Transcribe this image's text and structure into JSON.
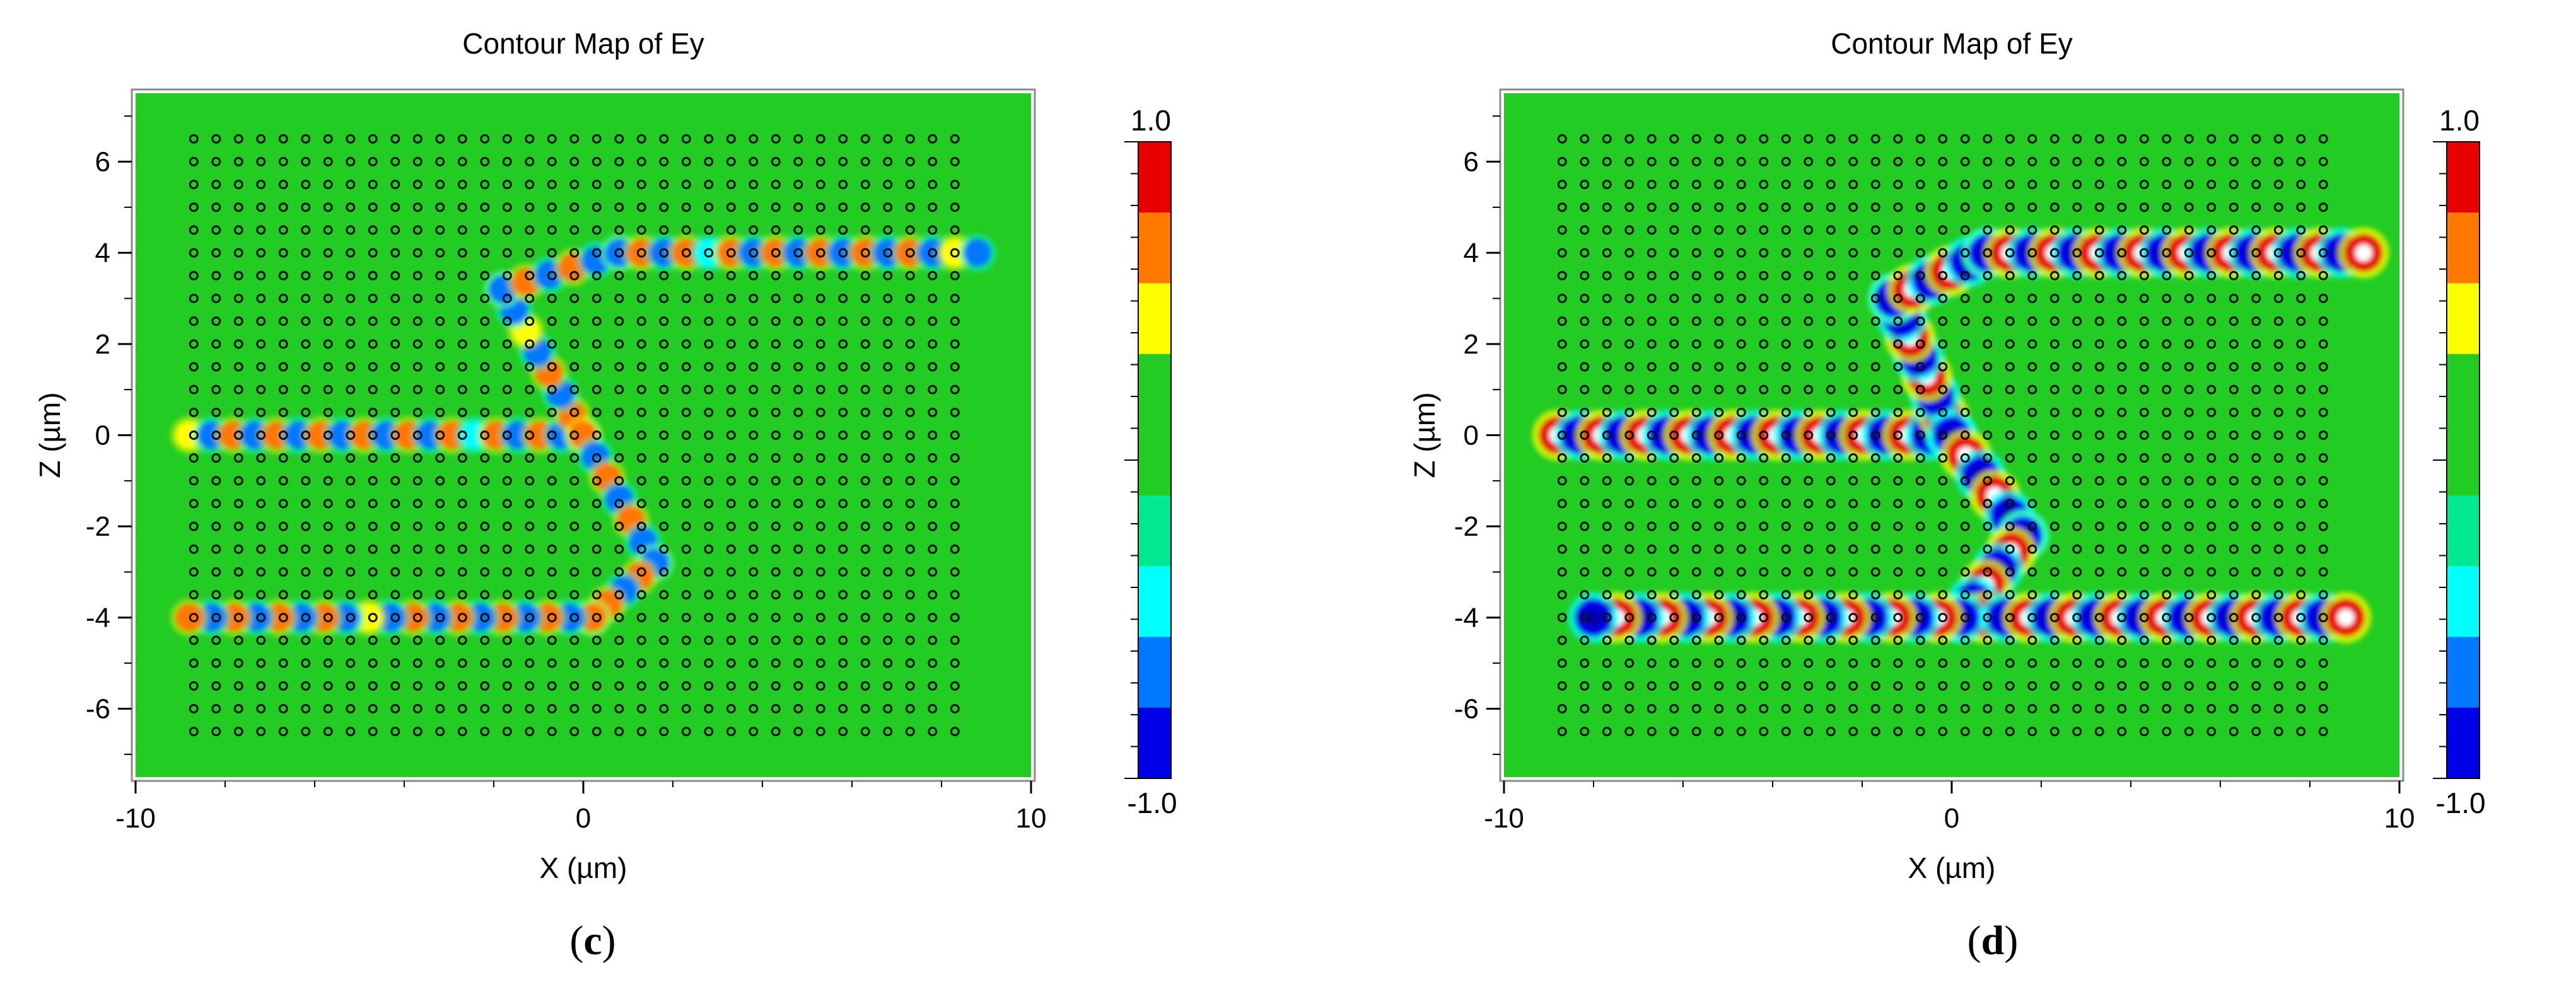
{
  "chart_data": [
    {
      "type": "heatmap",
      "panel_label": "c",
      "title": "Contour Map of Ey",
      "xlabel": "X (µm)",
      "ylabel": "Z (µm)",
      "xlim": [
        -10,
        10
      ],
      "ylim": [
        -7.5,
        7.5
      ],
      "x_ticks": [
        -10,
        0,
        10
      ],
      "y_ticks": [
        -6,
        -4,
        -2,
        0,
        2,
        4,
        6
      ],
      "colorbar": {
        "min_label": "-1.0",
        "max_label": "1.0",
        "range": [
          -1.0,
          1.0
        ]
      },
      "background_color": "#22cc22",
      "field_strength": 0.45,
      "rods": {
        "x_range": [
          -8.7,
          8.7
        ],
        "z_range": [
          -6.5,
          6.5
        ],
        "pitch": 0.5
      },
      "field_paths": [
        {
          "name": "input waveguide",
          "points": [
            [
              -8.8,
              0
            ],
            [
              0,
              0
            ]
          ]
        },
        {
          "name": "upper bend",
          "points": [
            [
              0,
              0
            ],
            [
              -1.8,
              3.2
            ],
            [
              0.8,
              4.0
            ]
          ]
        },
        {
          "name": "upper output",
          "points": [
            [
              0.8,
              4.0
            ],
            [
              8.8,
              4.0
            ]
          ]
        },
        {
          "name": "lower bend",
          "points": [
            [
              0,
              0
            ],
            [
              1.6,
              -2.8
            ],
            [
              0.2,
              -4.0
            ]
          ]
        },
        {
          "name": "lower output",
          "points": [
            [
              0.2,
              -4.0
            ],
            [
              -8.8,
              -4.0
            ]
          ]
        }
      ]
    },
    {
      "type": "heatmap",
      "panel_label": "d",
      "title": "Contour Map of Ey",
      "xlabel": "X (µm)",
      "ylabel": "Z (µm)",
      "xlim": [
        -10,
        10
      ],
      "ylim": [
        -7.5,
        7.5
      ],
      "x_ticks": [
        -10,
        0,
        10
      ],
      "y_ticks": [
        -6,
        -4,
        -2,
        0,
        2,
        4,
        6
      ],
      "colorbar": {
        "min_label": "-1.0",
        "max_label": "1.0",
        "range": [
          -1.0,
          1.0
        ]
      },
      "background_color": "#22cc22",
      "field_strength": 1.0,
      "rods": {
        "x_range": [
          -8.7,
          8.7
        ],
        "z_range": [
          -6.5,
          6.5
        ],
        "pitch": 0.5
      },
      "field_paths": [
        {
          "name": "input waveguide",
          "points": [
            [
              -8.8,
              0
            ],
            [
              0,
              0
            ]
          ]
        },
        {
          "name": "upper bend",
          "points": [
            [
              0,
              0
            ],
            [
              -1.3,
              3.0
            ],
            [
              0.8,
              4.0
            ]
          ]
        },
        {
          "name": "upper output",
          "points": [
            [
              0.8,
              4.0
            ],
            [
              9.2,
              4.0
            ]
          ]
        },
        {
          "name": "lower bend",
          "points": [
            [
              0,
              0
            ],
            [
              1.6,
              -2.2
            ],
            [
              0.2,
              -4.0
            ]
          ]
        },
        {
          "name": "lower output",
          "points": [
            [
              0.2,
              -4.0
            ],
            [
              8.8,
              -4.0
            ]
          ]
        },
        {
          "name": "lower left output",
          "points": [
            [
              0.2,
              -4.0
            ],
            [
              -8.0,
              -4.0
            ]
          ]
        }
      ]
    }
  ],
  "colorbar_colors": [
    "#e80000",
    "#ff7800",
    "#ffff00",
    "#22cc22",
    "#22cc22",
    "#00e890",
    "#00ffff",
    "#0078ff",
    "#0000e8"
  ]
}
